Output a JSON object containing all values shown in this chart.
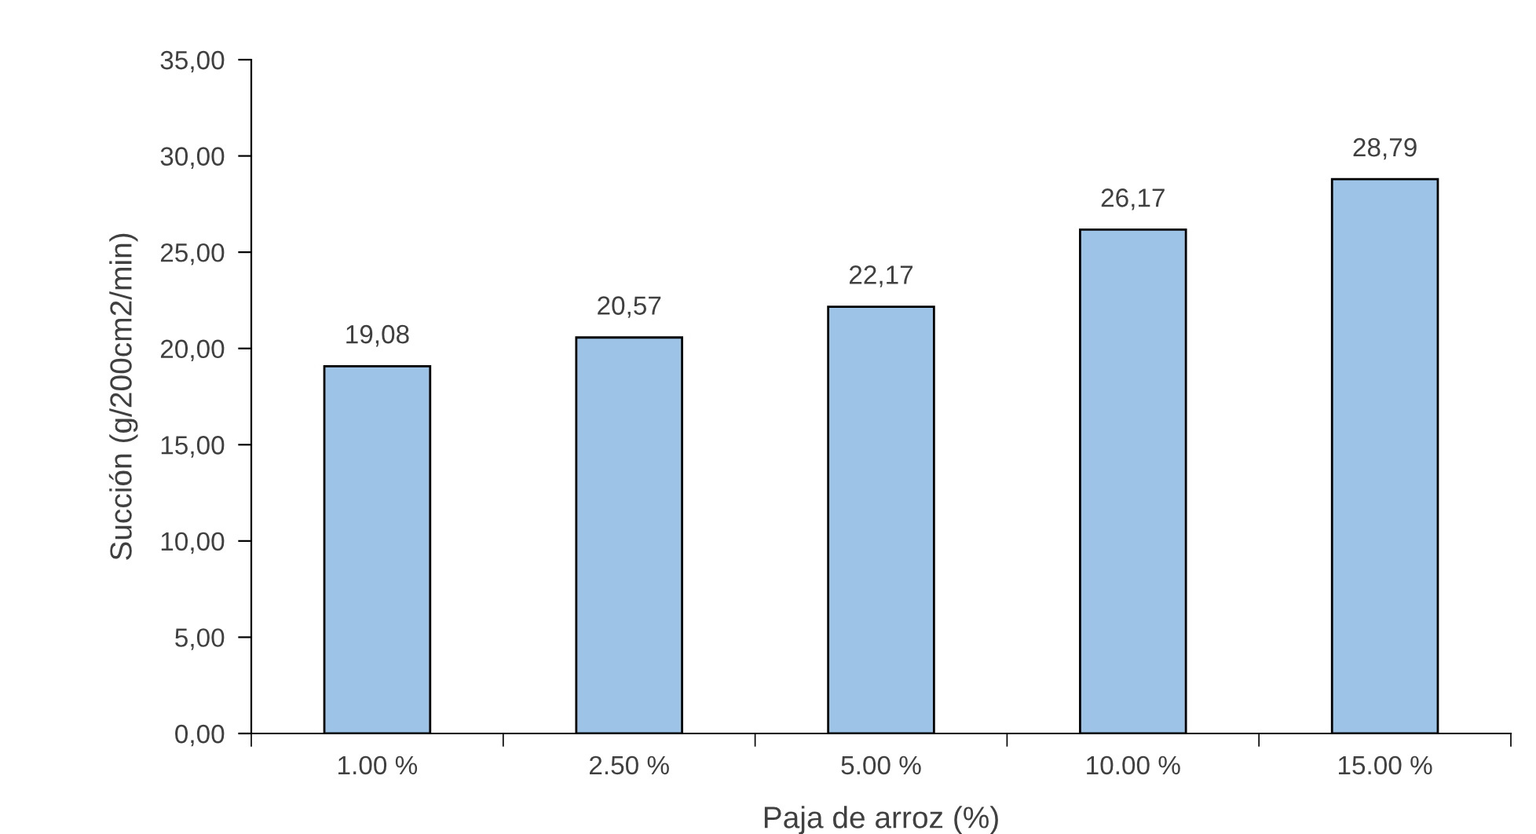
{
  "chart_data": {
    "type": "bar",
    "xlabel": "Paja de arroz (%)",
    "ylabel": "Succión (g/200cm2/min)",
    "categories": [
      "1.00 %",
      "2.50 %",
      "5.00 %",
      "10.00 %",
      "15.00 %"
    ],
    "values": [
      19.08,
      20.57,
      22.17,
      26.17,
      28.79
    ],
    "value_labels": [
      "19,08",
      "20,57",
      "22,17",
      "26,17",
      "28,79"
    ],
    "color": "#9dc3e6",
    "ylim": [
      0,
      35
    ],
    "yticks": [
      {
        "value": 0,
        "label": "0,00"
      },
      {
        "value": 5,
        "label": "5,00"
      },
      {
        "value": 10,
        "label": "10,00"
      },
      {
        "value": 15,
        "label": "15,00"
      },
      {
        "value": 20,
        "label": "20,00"
      },
      {
        "value": 25,
        "label": "25,00"
      },
      {
        "value": 30,
        "label": "30,00"
      },
      {
        "value": 35,
        "label": "35,00"
      }
    ],
    "grid": false,
    "legend": false
  }
}
